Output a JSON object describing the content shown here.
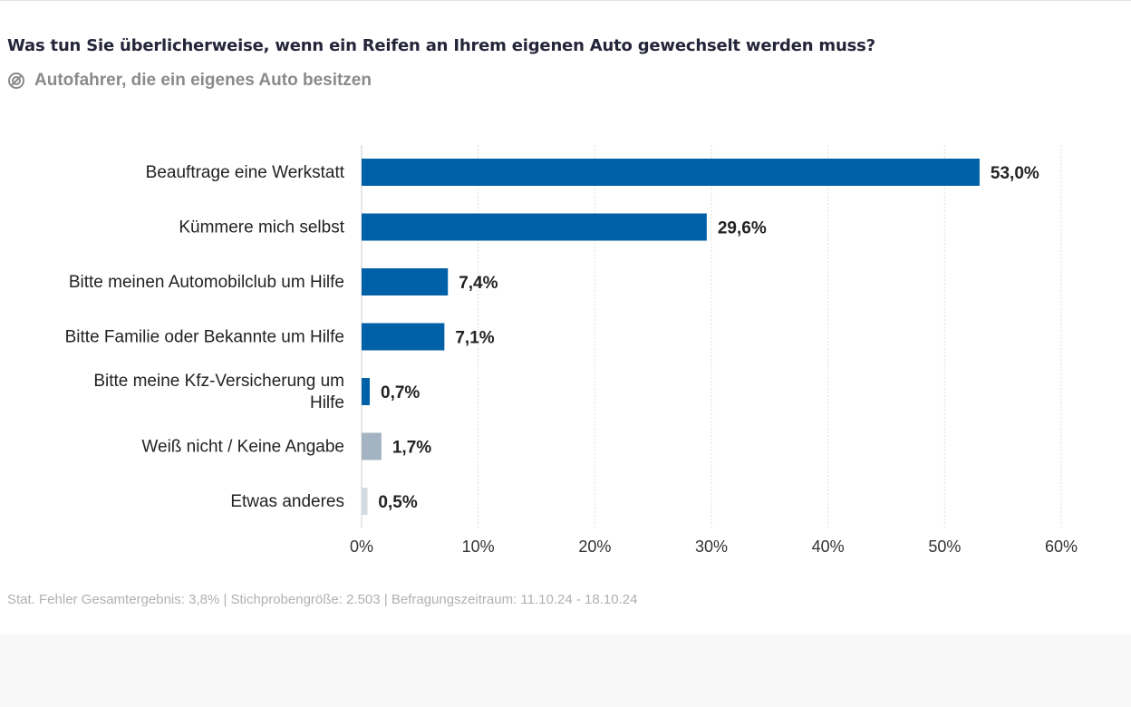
{
  "title": "Was tun Sie überlicherweise, wenn ein Reifen an Ihrem eigenen Auto gewechselt werden muss?",
  "subtitle": "Autofahrer, die ein eigenes Auto besitzen",
  "subtitle_icon": "target-group-icon",
  "footer": "Stat. Fehler Gesamtergebnis: 3,8% | Stichprobengröße: 2.503 | Befragungszeitraum: 11.10.24 - 18.10.24",
  "chart_data": {
    "type": "bar",
    "orientation": "horizontal",
    "categories": [
      [
        "Beauftrage eine Werkstatt"
      ],
      [
        "Kümmere mich selbst"
      ],
      [
        "Bitte meinen Automobilclub um Hilfe"
      ],
      [
        "Bitte Familie oder Bekannte um Hilfe"
      ],
      [
        "Bitte meine Kfz-Versicherung um",
        "Hilfe"
      ],
      [
        "Weiß nicht / Keine Angabe"
      ],
      [
        "Etwas anderes"
      ]
    ],
    "values": [
      53.0,
      29.6,
      7.4,
      7.1,
      0.7,
      1.7,
      0.5
    ],
    "data_labels": [
      "53,0%",
      "29,6%",
      "7,4%",
      "7,1%",
      "0,7%",
      "1,7%",
      "0,5%"
    ],
    "colors": [
      "#0060a8",
      "#0060a8",
      "#0060a8",
      "#0060a8",
      "#0060a8",
      "#a3b3c2",
      "#d3d9e0"
    ],
    "xlim": [
      0,
      60
    ],
    "xticks": [
      0,
      10,
      20,
      30,
      40,
      50,
      60
    ],
    "xtick_labels": [
      "0%",
      "10%",
      "20%",
      "30%",
      "40%",
      "50%",
      "60%"
    ],
    "grid": true
  }
}
